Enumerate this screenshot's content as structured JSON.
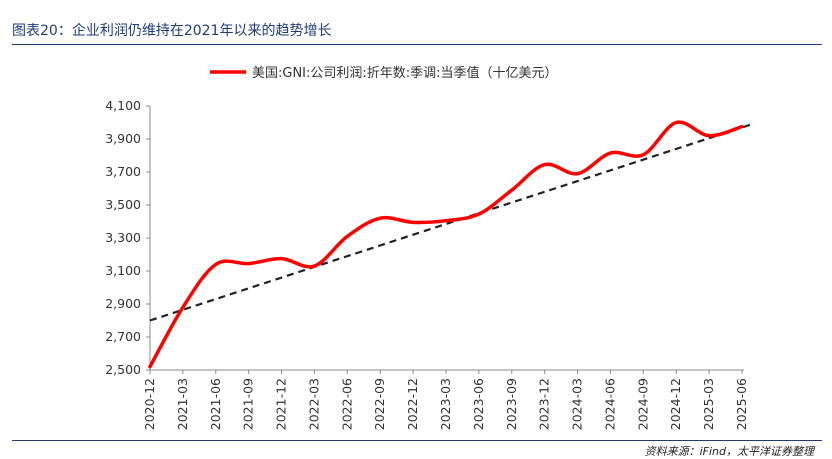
{
  "header": {
    "figure_title": "图表20：企业利润仍维持在2021年以来的趋势增长"
  },
  "footer": {
    "source": "资料来源：iFind，太平洋证券整理"
  },
  "chart_data": {
    "type": "line",
    "legend_position": "top-center",
    "grid": false,
    "categories": [
      "2020-12",
      "2021-03",
      "2021-06",
      "2021-09",
      "2021-12",
      "2022-03",
      "2022-06",
      "2022-09",
      "2022-12",
      "2023-03",
      "2023-06",
      "2023-09",
      "2023-12",
      "2024-03",
      "2024-06",
      "2024-09",
      "2024-12",
      "2025-03",
      "2025-06"
    ],
    "ylim": [
      2500,
      4100
    ],
    "yticks": [
      2500,
      2700,
      2900,
      3100,
      3300,
      3500,
      3700,
      3900,
      4100
    ],
    "ytick_labels": [
      "2,500",
      "2,700",
      "2,900",
      "3,100",
      "3,300",
      "3,500",
      "3,700",
      "3,900",
      "4,100"
    ],
    "series": [
      {
        "name": "美国:GNI:公司利润:折年数:季调:当季值（十亿美元）",
        "color": "#ff0000",
        "style": "solid",
        "values": [
          2520,
          2880,
          3140,
          3145,
          3175,
          3130,
          3310,
          3420,
          3395,
          3405,
          3445,
          3590,
          3745,
          3690,
          3815,
          3805,
          4000,
          3920,
          3975
        ]
      },
      {
        "style": "dashed",
        "color": "#222222",
        "trend_start": {
          "x": "2020-12",
          "y": 2800
        },
        "trend_end": {
          "x": "2025-06",
          "y": 3970
        }
      }
    ]
  }
}
